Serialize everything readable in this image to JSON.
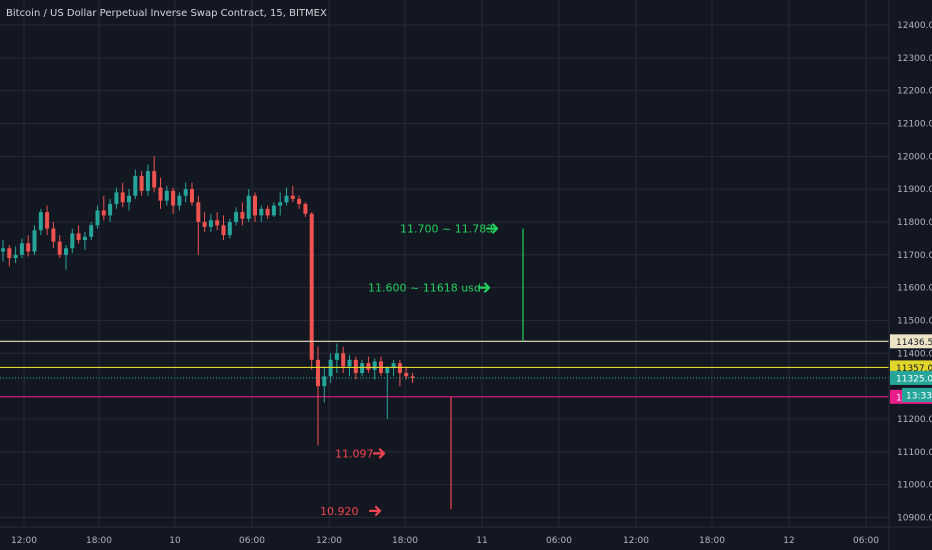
{
  "title": "Bitcoin / US Dollar Perpetual Inverse Swap Contract, 15, BITMEX",
  "colors": {
    "background": "#131722",
    "grid": "#262a36",
    "up": "#26a69a",
    "down": "#ef5350",
    "green_ann": "#22d05c",
    "red_ann": "#f0454f",
    "white_line": "#ece4c4",
    "yellow_line": "#e0d52a",
    "magenta_line": "#e91e8c",
    "teal_line": "#26a69a"
  },
  "chart_data": {
    "type": "candlestick",
    "y_ticks": [
      "12400.0",
      "12300.0",
      "12200.0",
      "12100.0",
      "12000.0",
      "11900.0",
      "11800.0",
      "11700.0",
      "11600.0",
      "11500.0",
      "11400.0",
      "11200.0",
      "11100.0",
      "11000.0",
      "10900.0"
    ],
    "x_ticks": [
      "12:00",
      "18:00",
      "10",
      "06:00",
      "12:00",
      "18:00",
      "11",
      "06:00",
      "12:00",
      "18:00",
      "12",
      "06:00"
    ],
    "ylim": [
      10880,
      12450
    ],
    "grid": true,
    "horizontal_lines": [
      {
        "label": "11436.5",
        "price": 11436.5,
        "color": "#ece4c4",
        "style": "solid"
      },
      {
        "label": "11357.0",
        "price": 11357,
        "color": "#e0d52a",
        "style": "solid"
      },
      {
        "label": "11325.0",
        "price": 11325,
        "color": "#26a69a",
        "style": "dotted"
      },
      {
        "label": "11267.5",
        "price": 11267.5,
        "color": "#e91e8c",
        "style": "solid"
      }
    ],
    "countdown_label": "13:33",
    "price_range_lines": [
      {
        "color": "#22d05c",
        "from": 11436.5,
        "to": 11780
      },
      {
        "color": "#f0454f",
        "from": 11267.5,
        "to": 10925
      }
    ],
    "annotations": [
      {
        "text": "11.700 ~ 11.783",
        "color": "#22d05c",
        "price": 11780
      },
      {
        "text": "11.600 ~ 11618 usd",
        "color": "#22d05c",
        "price": 11600
      },
      {
        "text": "11.097",
        "color": "#f0454f",
        "price": 11095
      },
      {
        "text": "10.920",
        "color": "#f0454f",
        "price": 10920
      }
    ],
    "candles": [
      {
        "x": 0,
        "o": 11710,
        "h": 11745,
        "l": 11680,
        "c": 11720
      },
      {
        "x": 1,
        "o": 11720,
        "h": 11730,
        "l": 11665,
        "c": 11690
      },
      {
        "x": 2,
        "o": 11690,
        "h": 11725,
        "l": 11675,
        "c": 11700
      },
      {
        "x": 3,
        "o": 11700,
        "h": 11750,
        "l": 11690,
        "c": 11735
      },
      {
        "x": 4,
        "o": 11735,
        "h": 11760,
        "l": 11695,
        "c": 11710
      },
      {
        "x": 5,
        "o": 11710,
        "h": 11790,
        "l": 11700,
        "c": 11775
      },
      {
        "x": 6,
        "o": 11775,
        "h": 11840,
        "l": 11760,
        "c": 11830
      },
      {
        "x": 7,
        "o": 11830,
        "h": 11850,
        "l": 11760,
        "c": 11780
      },
      {
        "x": 8,
        "o": 11780,
        "h": 11800,
        "l": 11720,
        "c": 11740
      },
      {
        "x": 9,
        "o": 11740,
        "h": 11760,
        "l": 11690,
        "c": 11700
      },
      {
        "x": 10,
        "o": 11700,
        "h": 11730,
        "l": 11655,
        "c": 11720
      },
      {
        "x": 11,
        "o": 11720,
        "h": 11780,
        "l": 11705,
        "c": 11765
      },
      {
        "x": 12,
        "o": 11765,
        "h": 11790,
        "l": 11735,
        "c": 11745
      },
      {
        "x": 13,
        "o": 11745,
        "h": 11770,
        "l": 11715,
        "c": 11755
      },
      {
        "x": 14,
        "o": 11755,
        "h": 11800,
        "l": 11745,
        "c": 11790
      },
      {
        "x": 15,
        "o": 11790,
        "h": 11850,
        "l": 11780,
        "c": 11835
      },
      {
        "x": 16,
        "o": 11835,
        "h": 11880,
        "l": 11805,
        "c": 11820
      },
      {
        "x": 17,
        "o": 11820,
        "h": 11870,
        "l": 11800,
        "c": 11855
      },
      {
        "x": 18,
        "o": 11855,
        "h": 11905,
        "l": 11840,
        "c": 11890
      },
      {
        "x": 19,
        "o": 11890,
        "h": 11920,
        "l": 11845,
        "c": 11860
      },
      {
        "x": 20,
        "o": 11860,
        "h": 11900,
        "l": 11835,
        "c": 11880
      },
      {
        "x": 21,
        "o": 11880,
        "h": 11960,
        "l": 11870,
        "c": 11940
      },
      {
        "x": 22,
        "o": 11940,
        "h": 11955,
        "l": 11880,
        "c": 11895
      },
      {
        "x": 23,
        "o": 11895,
        "h": 11975,
        "l": 11880,
        "c": 11955
      },
      {
        "x": 24,
        "o": 11955,
        "h": 12000,
        "l": 11890,
        "c": 11905
      },
      {
        "x": 25,
        "o": 11905,
        "h": 11935,
        "l": 11840,
        "c": 11865
      },
      {
        "x": 26,
        "o": 11865,
        "h": 11910,
        "l": 11850,
        "c": 11895
      },
      {
        "x": 27,
        "o": 11895,
        "h": 11905,
        "l": 11825,
        "c": 11850
      },
      {
        "x": 28,
        "o": 11850,
        "h": 11890,
        "l": 11835,
        "c": 11880
      },
      {
        "x": 29,
        "o": 11880,
        "h": 11920,
        "l": 11860,
        "c": 11900
      },
      {
        "x": 30,
        "o": 11900,
        "h": 11920,
        "l": 11850,
        "c": 11860
      },
      {
        "x": 31,
        "o": 11860,
        "h": 11880,
        "l": 11700,
        "c": 11800
      },
      {
        "x": 32,
        "o": 11800,
        "h": 11830,
        "l": 11770,
        "c": 11785
      },
      {
        "x": 33,
        "o": 11785,
        "h": 11825,
        "l": 11770,
        "c": 11805
      },
      {
        "x": 34,
        "o": 11805,
        "h": 11830,
        "l": 11775,
        "c": 11790
      },
      {
        "x": 35,
        "o": 11790,
        "h": 11820,
        "l": 11745,
        "c": 11760
      },
      {
        "x": 36,
        "o": 11760,
        "h": 11810,
        "l": 11750,
        "c": 11800
      },
      {
        "x": 37,
        "o": 11800,
        "h": 11845,
        "l": 11790,
        "c": 11830
      },
      {
        "x": 38,
        "o": 11830,
        "h": 11860,
        "l": 11790,
        "c": 11810
      },
      {
        "x": 39,
        "o": 11810,
        "h": 11900,
        "l": 11800,
        "c": 11880
      },
      {
        "x": 40,
        "o": 11880,
        "h": 11890,
        "l": 11800,
        "c": 11820
      },
      {
        "x": 41,
        "o": 11820,
        "h": 11850,
        "l": 11800,
        "c": 11840
      },
      {
        "x": 42,
        "o": 11840,
        "h": 11850,
        "l": 11810,
        "c": 11820
      },
      {
        "x": 43,
        "o": 11820,
        "h": 11860,
        "l": 11815,
        "c": 11850
      },
      {
        "x": 44,
        "o": 11850,
        "h": 11890,
        "l": 11820,
        "c": 11860
      },
      {
        "x": 45,
        "o": 11860,
        "h": 11905,
        "l": 11850,
        "c": 11880
      },
      {
        "x": 46,
        "o": 11880,
        "h": 11910,
        "l": 11860,
        "c": 11870
      },
      {
        "x": 47,
        "o": 11870,
        "h": 11880,
        "l": 11840,
        "c": 11855
      },
      {
        "x": 48,
        "o": 11855,
        "h": 11860,
        "l": 11815,
        "c": 11825
      },
      {
        "x": 49,
        "o": 11825,
        "h": 11830,
        "l": 11350,
        "c": 11380
      },
      {
        "x": 50,
        "o": 11380,
        "h": 11420,
        "l": 11120,
        "c": 11300
      },
      {
        "x": 51,
        "o": 11300,
        "h": 11360,
        "l": 11250,
        "c": 11330
      },
      {
        "x": 52,
        "o": 11330,
        "h": 11400,
        "l": 11310,
        "c": 11380
      },
      {
        "x": 53,
        "o": 11380,
        "h": 11430,
        "l": 11340,
        "c": 11400
      },
      {
        "x": 54,
        "o": 11400,
        "h": 11420,
        "l": 11340,
        "c": 11360
      },
      {
        "x": 55,
        "o": 11360,
        "h": 11395,
        "l": 11330,
        "c": 11380
      },
      {
        "x": 56,
        "o": 11380,
        "h": 11390,
        "l": 11320,
        "c": 11340
      },
      {
        "x": 57,
        "o": 11340,
        "h": 11380,
        "l": 11330,
        "c": 11370
      },
      {
        "x": 58,
        "o": 11370,
        "h": 11390,
        "l": 11340,
        "c": 11350
      },
      {
        "x": 59,
        "o": 11350,
        "h": 11385,
        "l": 11320,
        "c": 11375
      },
      {
        "x": 60,
        "o": 11375,
        "h": 11390,
        "l": 11330,
        "c": 11340
      },
      {
        "x": 61,
        "o": 11340,
        "h": 11360,
        "l": 11200,
        "c": 11355
      },
      {
        "x": 62,
        "o": 11355,
        "h": 11380,
        "l": 11330,
        "c": 11370
      },
      {
        "x": 63,
        "o": 11370,
        "h": 11380,
        "l": 11300,
        "c": 11340
      },
      {
        "x": 64,
        "o": 11340,
        "h": 11360,
        "l": 11320,
        "c": 11330
      },
      {
        "x": 65,
        "o": 11330,
        "h": 11340,
        "l": 11310,
        "c": 11325
      }
    ]
  }
}
